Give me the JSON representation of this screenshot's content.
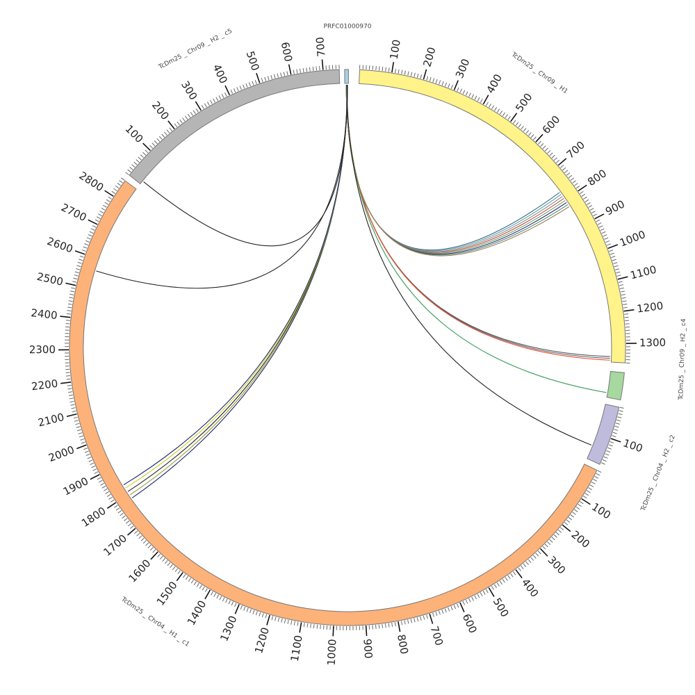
{
  "chart_data": {
    "type": "chord",
    "tick_interval_major": 100,
    "tick_interval_minor": 10,
    "units_per_degree": 15,
    "chromosomes": [
      {
        "id": "PRFC01000970",
        "label": "PRFC01000970",
        "start_angle_deg": -0.6,
        "length": 12,
        "color": "#a9cfe6",
        "show_ticks": false
      },
      {
        "id": "H1",
        "label": "TcDm25 _ Chr09 _ H1",
        "start_angle_deg": 2.5,
        "length": 1360,
        "color": "#fff38a",
        "show_ticks": true
      },
      {
        "id": "H2c4",
        "label": "TcDm25 _ Chr09 _ H2 _ c4",
        "start_angle_deg": 95.2,
        "length": 85,
        "color": "#a6d8a0",
        "show_ticks": false
      },
      {
        "id": "Chr04H2",
        "label": "TcDm25 _ Chr04 _ H2 _ c2",
        "start_angle_deg": 102.4,
        "length": 187,
        "color": "#bfbbdc",
        "show_ticks": true
      },
      {
        "id": "Chr04H1c1",
        "label": "TcDm25 _ Chr04 _ H1 _ c1",
        "start_angle_deg": 116.2,
        "length": 2860,
        "color": "#fdb27a",
        "show_ticks": true
      },
      {
        "id": "H2c5",
        "label": "TcDm25 _ Chr09 _ H2 _ c5",
        "start_angle_deg": 308.3,
        "length": 750,
        "color": "#b5b5b5",
        "show_ticks": true
      }
    ],
    "links": [
      {
        "source": [
          "PRFC01000970",
          5
        ],
        "target": [
          "H1",
          770
        ],
        "color": "#3b6b8a"
      },
      {
        "source": [
          "PRFC01000970",
          5
        ],
        "target": [
          "H1",
          778
        ],
        "color": "#5a9fa0"
      },
      {
        "source": [
          "PRFC01000970",
          5
        ],
        "target": [
          "H1",
          786
        ],
        "color": "#888888"
      },
      {
        "source": [
          "PRFC01000970",
          5
        ],
        "target": [
          "H1",
          794
        ],
        "color": "#c0504d"
      },
      {
        "source": [
          "PRFC01000970",
          5
        ],
        "target": [
          "H1",
          802
        ],
        "color": "#6aa36a"
      },
      {
        "source": [
          "PRFC01000970",
          5
        ],
        "target": [
          "H1",
          810
        ],
        "color": "#333366"
      },
      {
        "source": [
          "PRFC01000970",
          5
        ],
        "target": [
          "H1",
          818
        ],
        "color": "#4a8a8a"
      },
      {
        "source": [
          "PRFC01000970",
          5
        ],
        "target": [
          "H1",
          826
        ],
        "color": "#a08050"
      },
      {
        "source": [
          "PRFC01000970",
          6
        ],
        "target": [
          "H1",
          1342
        ],
        "color": "#555555"
      },
      {
        "source": [
          "PRFC01000970",
          6
        ],
        "target": [
          "H1",
          1348
        ],
        "color": "#666677"
      },
      {
        "source": [
          "PRFC01000970",
          6
        ],
        "target": [
          "H1",
          1354
        ],
        "color": "#e8502a"
      },
      {
        "source": [
          "PRFC01000970",
          6
        ],
        "target": [
          "H2c4",
          70
        ],
        "color": "#3a9a5a"
      },
      {
        "source": [
          "PRFC01000970",
          7
        ],
        "target": [
          "Chr04H2",
          141
        ],
        "color": "#222222"
      },
      {
        "source": [
          "PRFC01000970",
          8
        ],
        "target": [
          "Chr04H1c1",
          1783
        ],
        "color": "#1a2a6a"
      },
      {
        "source": [
          "PRFC01000970",
          8
        ],
        "target": [
          "Chr04H1c1",
          1795
        ],
        "color": "#999933"
      },
      {
        "source": [
          "PRFC01000970",
          8
        ],
        "target": [
          "Chr04H1c1",
          1808
        ],
        "color": "#222222"
      },
      {
        "source": [
          "PRFC01000970",
          8
        ],
        "target": [
          "Chr04H1c1",
          1822
        ],
        "color": "#cccc33"
      },
      {
        "source": [
          "PRFC01000970",
          8
        ],
        "target": [
          "Chr04H1c1",
          1834
        ],
        "color": "#1a2a6a"
      },
      {
        "source": [
          "PRFC01000970",
          9
        ],
        "target": [
          "Chr04H1c1",
          2561
        ],
        "color": "#222222"
      },
      {
        "source": [
          "PRFC01000970",
          9
        ],
        "target": [
          "H2c5",
          12
        ],
        "color": "#222222"
      }
    ]
  }
}
